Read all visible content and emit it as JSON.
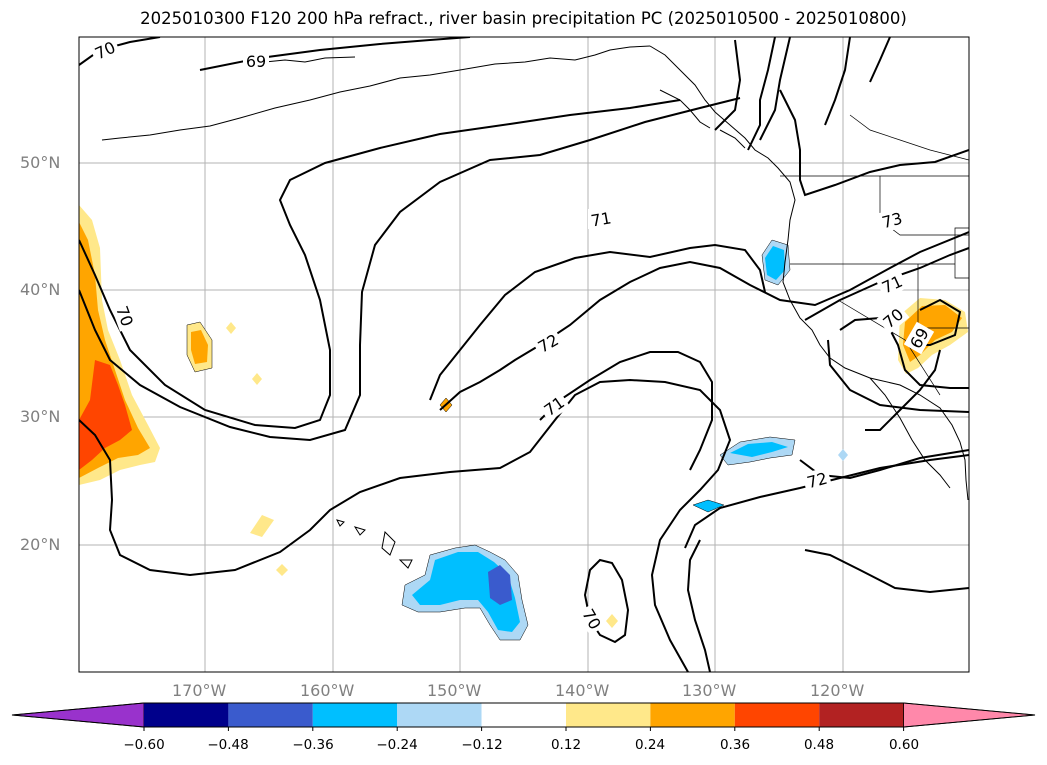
{
  "title": "2025010300 F120 200 hPa refract., river basin precipitation PC (2025010500 - 2025010800)",
  "latitude_labels": [
    "50°N",
    "40°N",
    "30°N",
    "20°N"
  ],
  "longitude_labels": [
    "170°W",
    "160°W",
    "150°W",
    "140°W",
    "130°W",
    "120°W"
  ],
  "contour_labels": [
    "70",
    "69",
    "71",
    "72",
    "71",
    "72",
    "70",
    "70",
    "71",
    "70",
    "73",
    "69"
  ],
  "colorbar": {
    "ticks": [
      "−0.60",
      "−0.48",
      "−0.36",
      "−0.24",
      "−0.12",
      "0.12",
      "0.24",
      "0.36",
      "0.48",
      "0.60"
    ],
    "colors": [
      "#9932cc",
      "#00008b",
      "#3a5bcd",
      "#00bfff",
      "#add8f5",
      "#ffffff",
      "#ffe88a",
      "#ffa500",
      "#ff4500",
      "#b22222",
      "#ff88aa"
    ]
  }
}
